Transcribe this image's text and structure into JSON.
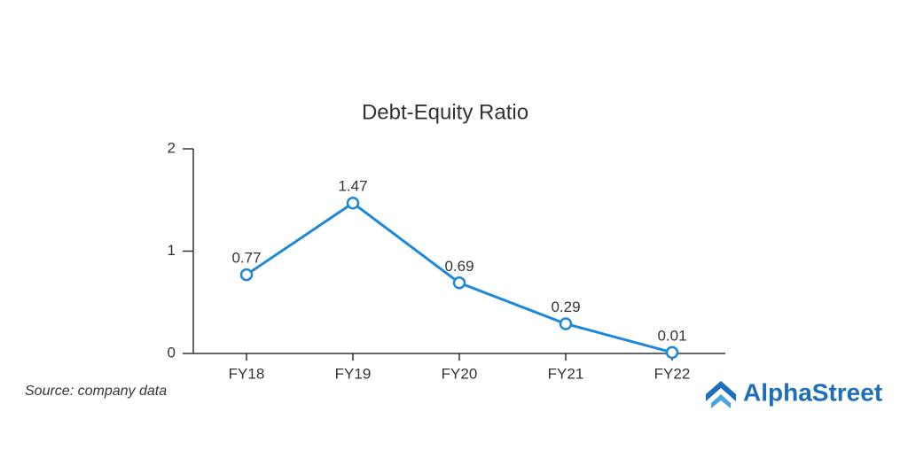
{
  "chart_data": {
    "type": "line",
    "title": "Debt-Equity Ratio",
    "categories": [
      "FY18",
      "FY19",
      "FY20",
      "FY21",
      "FY22"
    ],
    "values": [
      0.77,
      1.47,
      0.69,
      0.29,
      0.01
    ],
    "color": "#1e88d8",
    "ylim": [
      0,
      2
    ],
    "yticks": [
      0,
      1,
      2
    ],
    "grid": false
  },
  "source": "Source: company data",
  "brand": "AlphaStreet"
}
